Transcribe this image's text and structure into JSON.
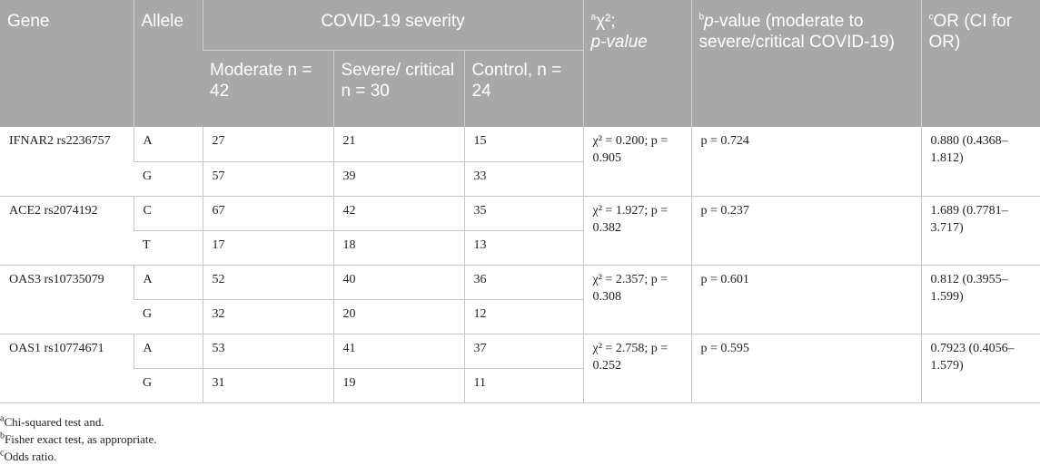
{
  "header": {
    "gene": "Gene",
    "allele": "Allele",
    "severity_group": "COVID-19 severity",
    "moderate": "Moderate n = 42",
    "severe": "Severe/ critical n = 30",
    "control": "Control, n = 24",
    "chi_sup": "a",
    "chi_label_1": "χ²;",
    "chi_label_2": "p-value",
    "pval_sup": "b",
    "pval_label_italic": "p",
    "pval_label_rest": "-value (moderate to severe/critical COVID-19)",
    "or_sup": "c",
    "or_label": "OR (CI for OR)"
  },
  "rows": [
    {
      "gene": "IFNAR2 rs2236757",
      "chi": "χ² = 0.200; p = 0.905",
      "pvalue": "p = 0.724",
      "or": "0.880 (0.4368–1.812)",
      "alleles": [
        {
          "allele": "A",
          "moderate": "27",
          "severe": "21",
          "control": "15"
        },
        {
          "allele": "G",
          "moderate": "57",
          "severe": "39",
          "control": "33"
        }
      ]
    },
    {
      "gene": "ACE2 rs2074192",
      "chi": "χ² = 1.927; p = 0.382",
      "pvalue": "p = 0.237",
      "or": "1.689 (0.7781–3.717)",
      "alleles": [
        {
          "allele": "C",
          "moderate": "67",
          "severe": "42",
          "control": "35"
        },
        {
          "allele": "T",
          "moderate": "17",
          "severe": "18",
          "control": "13"
        }
      ]
    },
    {
      "gene": "OAS3 rs10735079",
      "chi": "χ² = 2.357; p = 0.308",
      "pvalue": "p = 0.601",
      "or": "0.812 (0.3955–1.599)",
      "alleles": [
        {
          "allele": "A",
          "moderate": "52",
          "severe": "40",
          "control": "36"
        },
        {
          "allele": "G",
          "moderate": "32",
          "severe": "20",
          "control": "12"
        }
      ]
    },
    {
      "gene": "OAS1 rs10774671",
      "chi": "χ² = 2.758; p = 0.252",
      "pvalue": "p = 0.595",
      "or": "0.7923 (0.4056–1.579)",
      "alleles": [
        {
          "allele": "A",
          "moderate": "53",
          "severe": "41",
          "control": "37"
        },
        {
          "allele": "G",
          "moderate": "31",
          "severe": "19",
          "control": "11"
        }
      ]
    }
  ],
  "footnotes": [
    {
      "sup": "a",
      "text": "Chi-squared test and."
    },
    {
      "sup": "b",
      "text": "Fisher exact test, as appropriate."
    },
    {
      "sup": "c",
      "text": "Odds ratio."
    }
  ],
  "colors": {
    "header_bg": "#a8a8a8",
    "header_text": "#ffffff",
    "grid": "#c8c8c8",
    "body_text": "#222222"
  }
}
